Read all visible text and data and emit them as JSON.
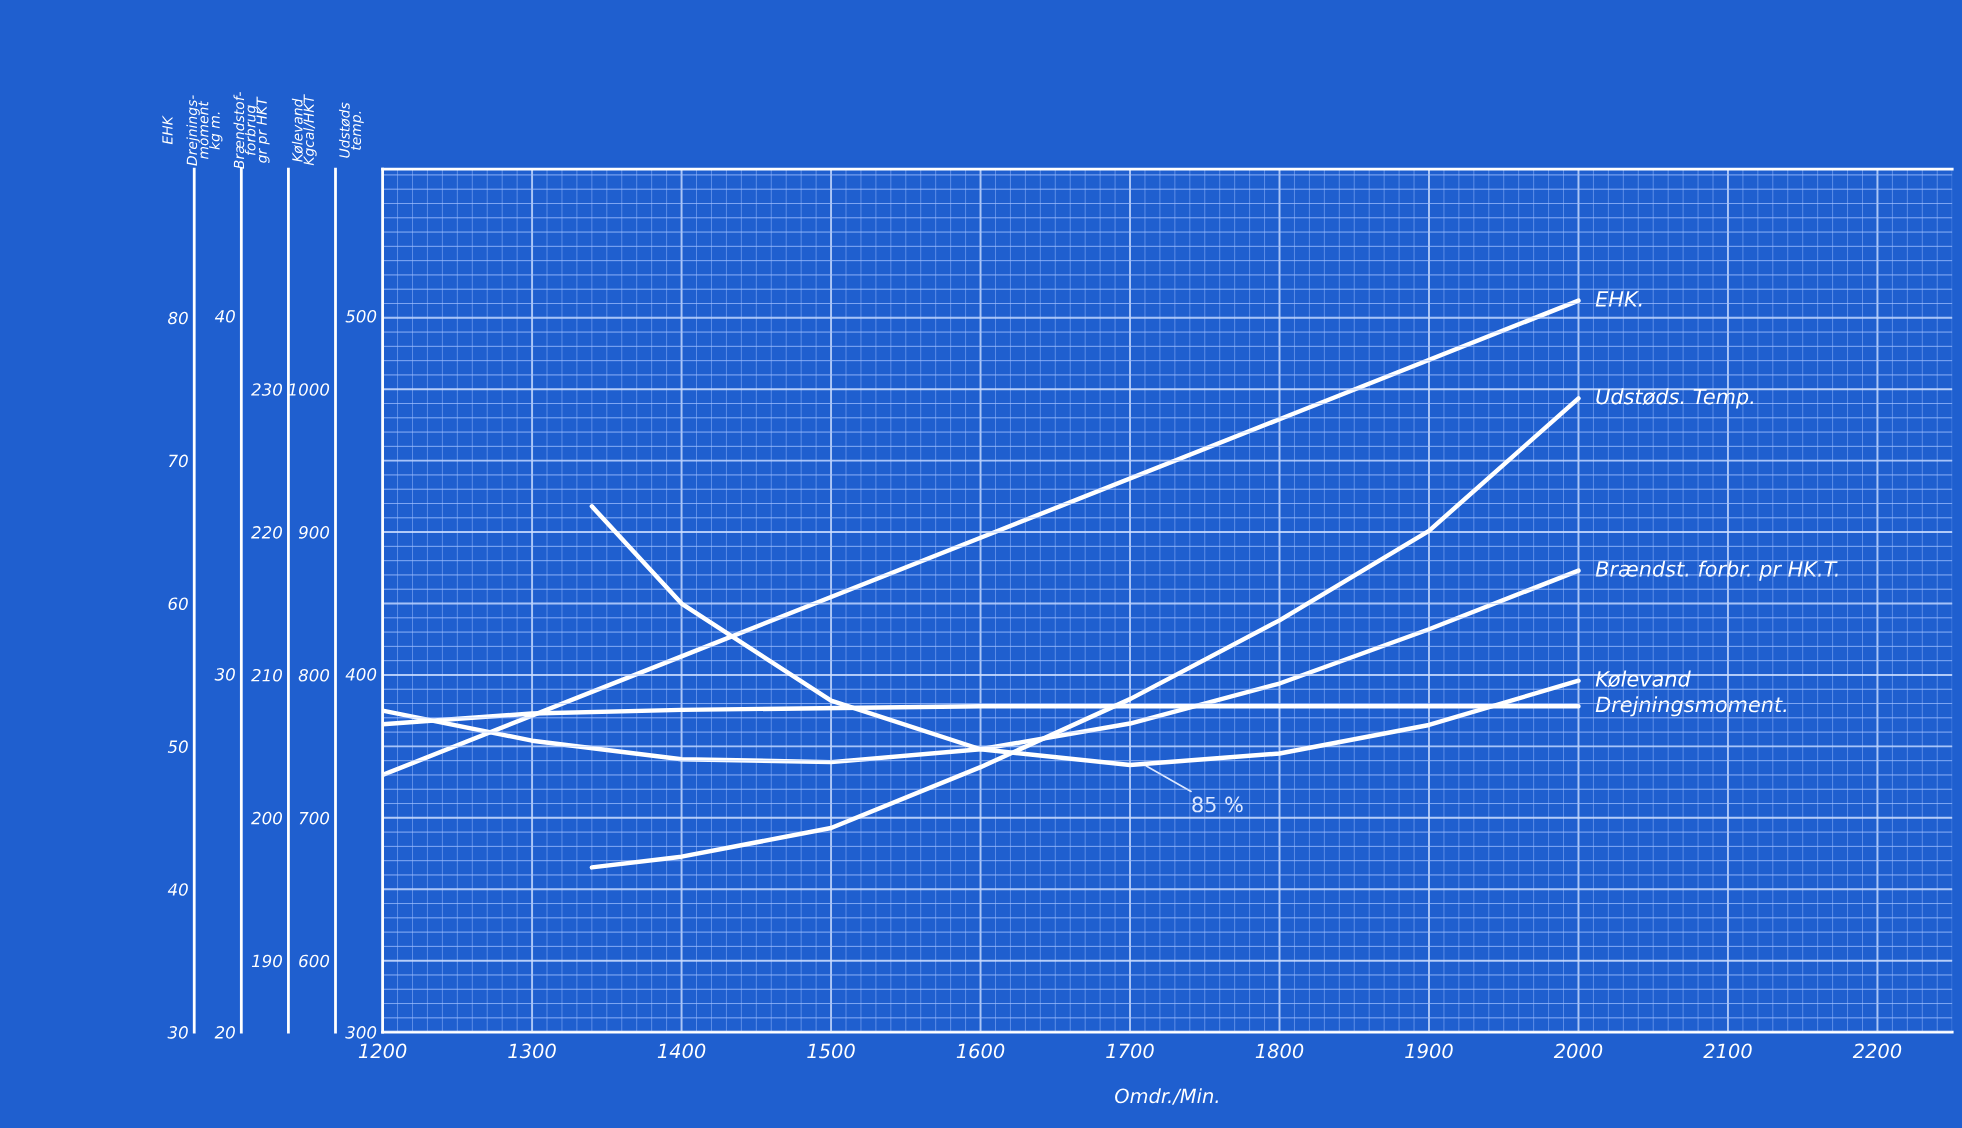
{
  "chart_data": [
    {
      "type": "line",
      "xlabel": "Omdr./Min.",
      "ylabel": "EHK",
      "y2label": "Drejnings-\nmoment\nkg m.",
      "y3label": "Brændstof-\nforbrug\ngr pr HKT",
      "xlim": [
        1200,
        2250
      ],
      "xticks": [
        1200,
        1300,
        1400,
        1500,
        1600,
        1700,
        1800,
        1900,
        2000,
        2100,
        2200
      ],
      "ylim": [
        30,
        90.4
      ],
      "yticks": [
        30,
        40,
        50,
        60,
        70,
        80
      ],
      "y2lim": [
        20,
        44.1
      ],
      "y2ticks": [
        20,
        30,
        40
      ],
      "y3lim": [
        185,
        245.4
      ],
      "y3ticks": [
        190,
        200,
        210,
        220,
        230
      ],
      "grid": true,
      "legend": false,
      "line_style": "solid",
      "series": [
        {
          "name": "EHK.",
          "color": "#ffffff",
          "x": [
            1200,
            1400,
            1600,
            1800,
            2000
          ],
          "values": [
            48.0,
            56.3,
            64.6,
            72.9,
            81.2
          ]
        },
        {
          "name": "Brændst. forbr. pr HK.T.",
          "color": "#ffffff",
          "axis": "y3",
          "x": [
            1200,
            1300,
            1400,
            1500,
            1600,
            1700,
            1800,
            1900,
            2000
          ],
          "values": [
            207.5,
            205.4,
            204.1,
            203.9,
            204.8,
            206.6,
            209.4,
            213.2,
            217.3
          ]
        },
        {
          "name": "Drejningsmoment.",
          "color": "#ffffff",
          "axis": "y2",
          "x": [
            1200,
            1300,
            1400,
            1600,
            1800,
            2000
          ],
          "values": [
            28.6,
            28.9,
            29.0,
            29.1,
            29.1,
            29.1
          ]
        }
      ],
      "annotations": [
        "85 %"
      ]
    },
    {
      "type": "line",
      "ylabel": "Kølevand\nKgcal/HKT",
      "y2label": "Udstøds\ntemp.",
      "xlim": [
        1200,
        2250
      ],
      "ylim": [
        550,
        1154
      ],
      "yticks": [
        600,
        700,
        800,
        900,
        1000
      ],
      "y2lim": [
        300,
        541
      ],
      "y2ticks": [
        300,
        400,
        500
      ],
      "tick_labels": "y",
      "line_style": "solid",
      "grid": true,
      "series": [
        {
          "name": "Udstøds. Temp.",
          "color": "#ffffff",
          "axis": "y2",
          "x": [
            1340,
            1400,
            1500,
            1600,
            1700,
            1800,
            1900,
            2000
          ],
          "values": [
            346,
            349,
            357,
            374,
            393,
            415,
            440,
            477
          ]
        },
        {
          "name": "Kølevand",
          "color": "#ffffff",
          "x": [
            1340,
            1400,
            1500,
            1600,
            1700,
            1800,
            1900,
            2000
          ],
          "values": [
            918,
            850,
            782,
            748,
            737,
            745,
            765,
            796
          ]
        }
      ]
    }
  ]
}
